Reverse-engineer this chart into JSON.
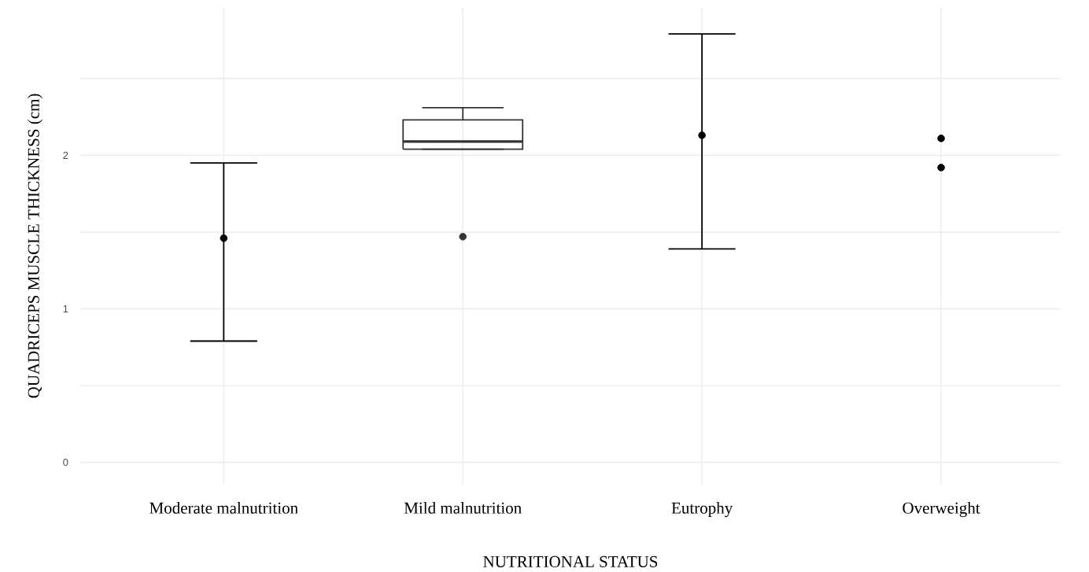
{
  "chart_data": {
    "type": "box",
    "xlabel": "NUTRITIONAL STATUS",
    "ylabel": "QUADRICEPS MUSCLE THICKNESS (cm)",
    "categories": [
      "Moderate malnutrition",
      "Mild malnutrition",
      "Eutrophy",
      "Overweight"
    ],
    "ylim": [
      -0.14,
      2.96
    ],
    "yticks": [
      0,
      {
        "value": 0.5,
        "label": null
      },
      1,
      {
        "value": 1.5,
        "label": null
      },
      2,
      {
        "value": 2.5,
        "label": null
      }
    ],
    "grid": true,
    "marker": "circle",
    "series": [
      {
        "color": "#333333",
        "boxes": [
          null,
          {
            "low": 2.04,
            "q1": 2.04,
            "median": 2.09,
            "q3": 2.23,
            "high": 2.31,
            "outliers": [
              1.47
            ]
          },
          null,
          null
        ]
      },
      {
        "type": "scatter",
        "color": "#000000",
        "values": [
          1.46,
          null,
          2.13,
          null
        ],
        "errors": [
          [
            0.79,
            1.95
          ],
          null,
          [
            1.39,
            2.79
          ],
          null
        ]
      },
      {
        "type": "scatter",
        "color": "#000000",
        "x": [
          "Overweight",
          "Overweight"
        ],
        "values": [
          2.11,
          1.92
        ]
      }
    ]
  }
}
